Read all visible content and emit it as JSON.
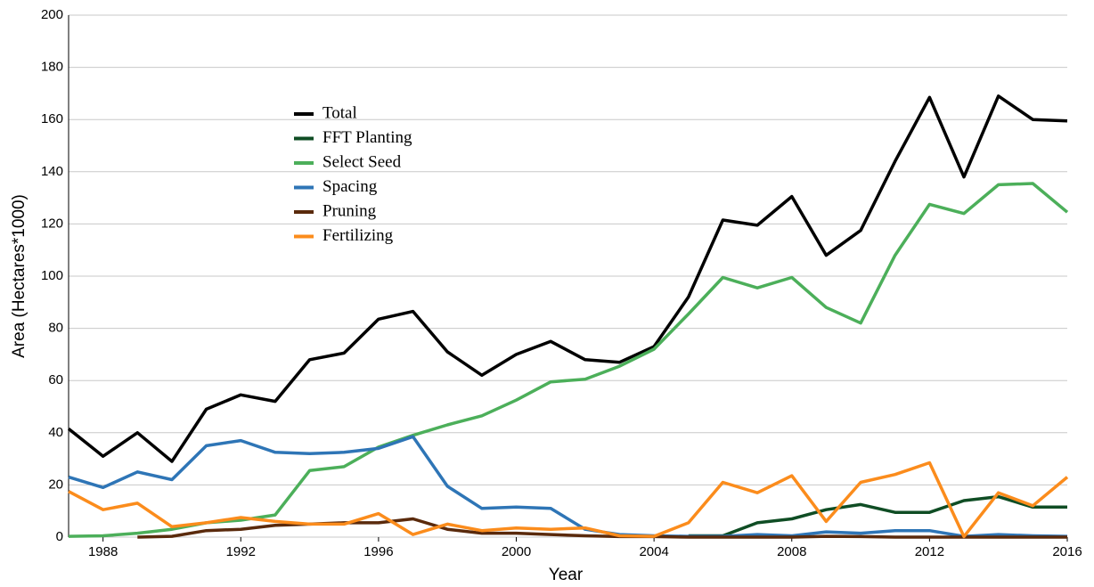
{
  "chart_data": {
    "type": "line",
    "x_label": "Year",
    "y_label": "Area (Hectares*1000)",
    "x": [
      1987,
      1988,
      1989,
      1990,
      1991,
      1992,
      1993,
      1994,
      1995,
      1996,
      1997,
      1998,
      1999,
      2000,
      2001,
      2002,
      2003,
      2004,
      2005,
      2006,
      2007,
      2008,
      2009,
      2010,
      2011,
      2012,
      2013,
      2014,
      2015,
      2016
    ],
    "xlim": [
      1987,
      2016
    ],
    "xticks": [
      1988,
      1992,
      1996,
      2000,
      2004,
      2008,
      2012,
      2016
    ],
    "ylim": [
      0,
      200
    ],
    "yticks": [
      0,
      20,
      40,
      60,
      80,
      100,
      120,
      140,
      160,
      180,
      200
    ],
    "grid": true,
    "series": [
      {
        "name": "Total",
        "color": "#000000",
        "values": [
          41.5,
          31,
          40,
          29,
          49,
          54.5,
          52,
          68,
          70.5,
          83.5,
          86.5,
          71,
          62,
          70,
          75,
          68,
          67,
          73,
          92,
          121.5,
          119.5,
          130.5,
          108,
          117.5,
          144,
          168.5,
          138,
          169,
          160,
          159.5
        ]
      },
      {
        "name": "FFT Planting",
        "color": "#0f4d24",
        "values": [
          null,
          null,
          null,
          null,
          null,
          null,
          null,
          null,
          null,
          null,
          null,
          null,
          null,
          null,
          null,
          null,
          null,
          null,
          0.5,
          0.5,
          5.5,
          7,
          10.5,
          12.5,
          9.5,
          9.5,
          14,
          15.5,
          11.5,
          11.5
        ]
      },
      {
        "name": "Select Seed",
        "color": "#4caf5a",
        "values": [
          0.3,
          0.5,
          1.5,
          3,
          5.5,
          6.5,
          8.5,
          25.5,
          27,
          34.5,
          39,
          43,
          46.5,
          52.5,
          59.5,
          60.5,
          65.5,
          72,
          85.5,
          99.5,
          95.5,
          99.5,
          88,
          82,
          108,
          127.5,
          124,
          135,
          135.5,
          124.5
        ]
      },
      {
        "name": "Spacing",
        "color": "#2e75b6",
        "values": [
          23,
          19,
          25,
          22,
          35,
          37,
          32.5,
          32,
          32.5,
          34,
          38.5,
          19.5,
          11,
          11.5,
          11,
          3,
          1,
          0.5,
          0.3,
          0.3,
          1,
          0.5,
          2,
          1.5,
          2.5,
          2.5,
          0.3,
          1,
          0.5,
          0.3
        ]
      },
      {
        "name": "Pruning",
        "color": "#5a2a0c",
        "values": [
          null,
          null,
          0,
          0.3,
          2.5,
          3,
          4.5,
          5,
          5.5,
          5.5,
          7,
          3,
          1.5,
          1.5,
          1,
          0.5,
          0.2,
          0.2,
          0,
          0,
          0,
          0,
          0.3,
          0.2,
          0,
          0,
          0,
          0,
          0,
          0
        ]
      },
      {
        "name": "Fertilizing",
        "color": "#fb8c1c",
        "values": [
          17.5,
          10.5,
          13,
          4,
          5.5,
          7.5,
          6,
          5,
          5,
          9,
          1,
          5,
          2.5,
          3.5,
          3,
          3.5,
          0.5,
          0.3,
          5.5,
          21,
          17,
          23.5,
          6,
          21,
          24,
          28.5,
          0.2,
          17,
          12,
          23
        ]
      }
    ]
  }
}
